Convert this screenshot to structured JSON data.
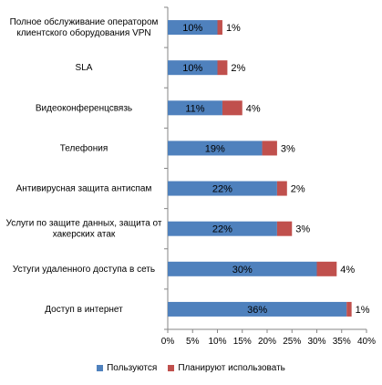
{
  "chart_data": {
    "type": "bar",
    "orientation": "horizontal",
    "stacked": true,
    "categories": [
      "Полное обслуживание оператором клиентского оборудования VPN",
      "SLA",
      "Видеоконференцсвязь",
      "Телефония",
      "Антивирусная защита антиспам",
      "Услуги по защите данных, защита от хакерских атак",
      "Устуги удаленного доступа в сеть",
      "Доступ в интернет"
    ],
    "series": [
      {
        "name": "Пользуются",
        "color": "#4F81BD",
        "values": [
          10,
          10,
          11,
          19,
          22,
          22,
          30,
          36
        ]
      },
      {
        "name": "Планируют использовать",
        "color": "#C0504D",
        "values": [
          1,
          2,
          4,
          3,
          2,
          3,
          4,
          1
        ]
      }
    ],
    "value_labels": {
      "Пользуются": [
        "10%",
        "10%",
        "11%",
        "19%",
        "22%",
        "22%",
        "30%",
        "36%"
      ],
      "Планируют использовать": [
        "1%",
        "2%",
        "4%",
        "3%",
        "2%",
        "3%",
        "4%",
        "1%"
      ]
    },
    "xlim": [
      0,
      40
    ],
    "xticks": [
      "0%",
      "5%",
      "10%",
      "15%",
      "20%",
      "25%",
      "30%",
      "35%",
      "40%"
    ],
    "legend_position": "bottom",
    "grid": false
  },
  "legend": {
    "items": [
      {
        "label": "Пользуются",
        "color": "#4F81BD"
      },
      {
        "label": "Планируют использовать",
        "color": "#C0504D"
      }
    ]
  }
}
